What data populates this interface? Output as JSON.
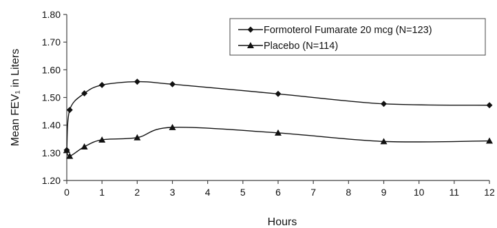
{
  "chart_data": {
    "type": "line",
    "xlabel": "Hours",
    "ylabel": "Mean FEV₁ in Liters",
    "xlim": [
      0,
      12
    ],
    "ylim": [
      1.2,
      1.8
    ],
    "x_ticks": [
      0,
      1,
      2,
      3,
      4,
      5,
      6,
      7,
      8,
      9,
      10,
      11,
      12
    ],
    "x_tick_labels": [
      "0",
      "1",
      "2",
      "3",
      "4",
      "5",
      "6",
      "7",
      "8",
      "9",
      "10",
      "11",
      "12"
    ],
    "y_ticks": [
      1.2,
      1.3,
      1.4,
      1.5,
      1.6,
      1.7,
      1.8
    ],
    "y_tick_labels": [
      "1.20",
      "1.30",
      "1.40",
      "1.50",
      "1.60",
      "1.70",
      "1.80"
    ],
    "grid": false,
    "legend_position": "top-right",
    "series": [
      {
        "name": "Formoterol Fumarate 20 mcg (N=123)",
        "marker": "diamond",
        "color": "#111111",
        "x": [
          0,
          0.083,
          0.5,
          1,
          2,
          3,
          6,
          9,
          12
        ],
        "y": [
          1.31,
          1.455,
          1.515,
          1.545,
          1.557,
          1.548,
          1.513,
          1.477,
          1.472
        ]
      },
      {
        "name": "Placebo (N=114)",
        "marker": "triangle",
        "color": "#111111",
        "x": [
          0,
          0.083,
          0.5,
          1,
          2,
          3,
          6,
          9,
          12
        ],
        "y": [
          1.31,
          1.288,
          1.322,
          1.347,
          1.355,
          1.392,
          1.372,
          1.341,
          1.343
        ]
      }
    ]
  }
}
